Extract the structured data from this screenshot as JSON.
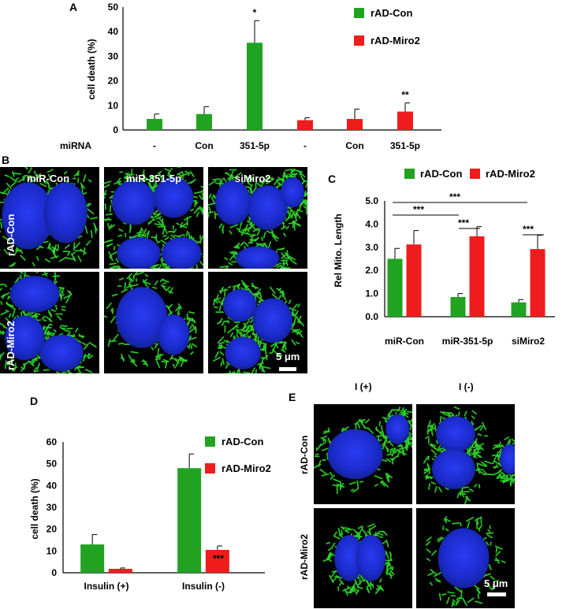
{
  "colors": {
    "con": "#21a321",
    "miro": "#ee1c1c",
    "nucleus": "#1c2fe0",
    "mito": "#2fd42a",
    "bg": "#000000"
  },
  "panels": {
    "a": "A",
    "b": "B",
    "c": "C",
    "d": "D",
    "e": "E"
  },
  "chart_data": [
    {
      "id": "A",
      "type": "bar",
      "ylabel": "cell death (%)",
      "ylim": [
        0,
        50
      ],
      "yticks": [
        "0",
        "10",
        "20",
        "30",
        "40",
        "50"
      ],
      "row_label": "miRNA",
      "categories": [
        "-",
        "Con",
        "351-5p",
        "-",
        "Con",
        "351-5p"
      ],
      "series_of_bar": [
        "con",
        "con",
        "con",
        "miro",
        "miro",
        "miro"
      ],
      "values": [
        4.5,
        6.5,
        35.5,
        4,
        4.5,
        7.5
      ],
      "errors": [
        2,
        3,
        9,
        1,
        4,
        3.5
      ],
      "significance": [
        "",
        "",
        "*",
        "",
        "",
        "**"
      ],
      "legend": [
        "rAD-Con",
        "rAD-Miro2"
      ]
    },
    {
      "id": "C",
      "type": "bar",
      "ylabel": "Rel Mito. Length",
      "ylim": [
        0,
        5
      ],
      "yticks": [
        "0.0",
        "1.0",
        "2.0",
        "3.0",
        "4.0",
        "5.0"
      ],
      "categories": [
        "miR-Con",
        "miR-351-5p",
        "siMiro2"
      ],
      "series": [
        {
          "name": "rAD-Con",
          "values": [
            2.5,
            0.85,
            0.62
          ],
          "errors": [
            0.45,
            0.15,
            0.12
          ]
        },
        {
          "name": "rAD-Miro2",
          "values": [
            3.12,
            3.47,
            2.92
          ],
          "errors": [
            0.6,
            0.42,
            0.6
          ]
        }
      ],
      "brackets": [
        "***",
        "***",
        "***",
        "***"
      ]
    },
    {
      "id": "D",
      "type": "bar",
      "ylabel": "cell death (%)",
      "ylim": [
        0,
        60
      ],
      "yticks": [
        "0",
        "10",
        "20",
        "30",
        "40",
        "50",
        "60"
      ],
      "categories": [
        "Insulin (+)",
        "Insulin (-)"
      ],
      "series": [
        {
          "name": "rAD-Con",
          "values": [
            13,
            48
          ],
          "errors": [
            4.5,
            6.5
          ]
        },
        {
          "name": "rAD-Miro2",
          "values": [
            1.8,
            10.5
          ],
          "errors": [
            0.4,
            1.8
          ]
        }
      ],
      "significance": [
        "***"
      ]
    }
  ],
  "micrographs": {
    "b": {
      "columns": [
        "miR-Con",
        "miR-351-5p",
        "siMiro2"
      ],
      "rows": [
        "rAD-Con",
        "rAD-Miro2"
      ],
      "scale": "5 μm"
    },
    "e": {
      "columns": [
        "I (+)",
        "I (-)"
      ],
      "rows": [
        "rAD-Con",
        "rAD-Miro2"
      ],
      "scale": "5 μm"
    }
  }
}
